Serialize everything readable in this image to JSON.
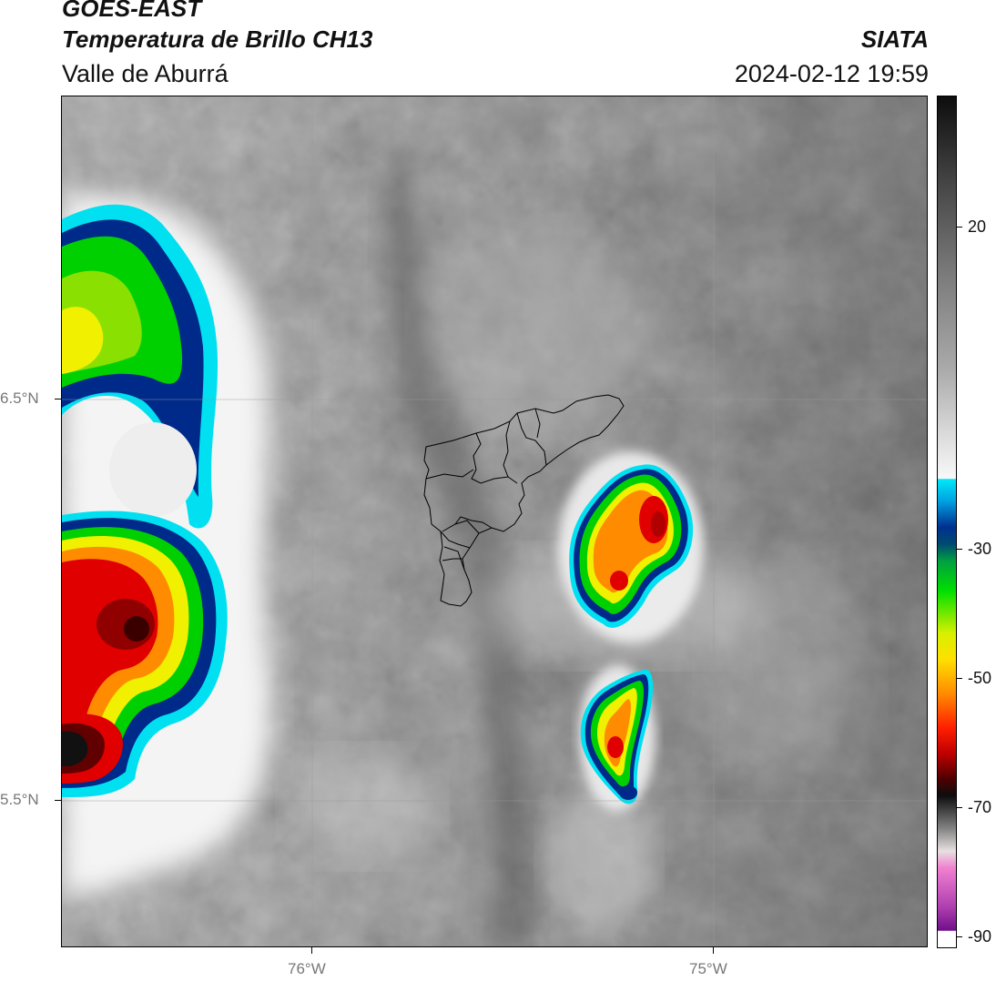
{
  "header": {
    "satellite": "GOES-EAST",
    "product": "Temperatura de Brillo CH13",
    "region": "Valle de Aburrá",
    "brand": "SIATA",
    "datetime": "2024-02-12 19:59"
  },
  "map": {
    "lat_labels": [
      "6.5°N",
      "5.5°N"
    ],
    "lon_labels": [
      "76°W",
      "75°W"
    ],
    "background": "grayscale brightness temperature field",
    "storm_cells": [
      {
        "name": "west-storm-upper",
        "coldest_c": -50
      },
      {
        "name": "west-storm-lower",
        "coldest_c": -70
      },
      {
        "name": "east-storm-north",
        "coldest_c": -60
      },
      {
        "name": "east-storm-south",
        "coldest_c": -60
      }
    ]
  },
  "colorbar": {
    "ticks": [
      "20",
      "-30",
      "-50",
      "-70",
      "-90"
    ],
    "colors": {
      "white": "#ffffff",
      "cyan": "#00e0f0",
      "navy": "#002a8a",
      "green": "#00d000",
      "yellow": "#f0f000",
      "orange": "#ff8c00",
      "red": "#e00000",
      "darkred": "#600000",
      "black": "#111111",
      "magenta": "#e060d0",
      "purple": "#7a1a9a"
    }
  }
}
